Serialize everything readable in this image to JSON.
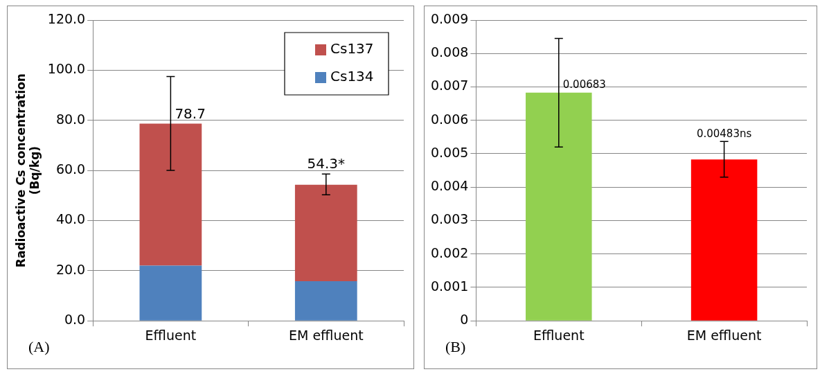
{
  "chart_data": [
    {
      "type": "bar",
      "stacked": true,
      "ylabel": "Radioactive Cs concentration (Bq/kg)",
      "categories": [
        "Effluent",
        "EM effluent"
      ],
      "ylim": [
        0,
        120
      ],
      "yticks": [
        {
          "value": 0,
          "label": "0.0"
        },
        {
          "value": 20,
          "label": "20.0"
        },
        {
          "value": 40,
          "label": "40.0"
        },
        {
          "value": 60,
          "label": "60.0"
        },
        {
          "value": 80,
          "label": "80.0"
        },
        {
          "value": 100,
          "label": "100.0"
        },
        {
          "value": 120,
          "label": "120.0"
        }
      ],
      "grid": "y",
      "legend": "top right",
      "series": [
        {
          "name": "Cs134",
          "color": "#4f81bd",
          "values": [
            22.0,
            15.8
          ]
        },
        {
          "name": "Cs137",
          "color": "#c0504d",
          "values": [
            56.7,
            38.5
          ],
          "errors": [
            [
              60.0,
              97.5
            ],
            [
              50.3,
              58.6
            ]
          ]
        }
      ],
      "totals": [
        "78.7",
        "54.3*"
      ],
      "annotations": [
        "(A)"
      ]
    },
    {
      "type": "bar",
      "categories": [
        "Effluent",
        "EM effluent"
      ],
      "ylim": [
        0,
        0.009
      ],
      "yticks": [
        0,
        0.001,
        0.002,
        0.003,
        0.004,
        0.005,
        0.006,
        0.007,
        0.008,
        0.009
      ],
      "grid": "y",
      "values": [
        0.00683,
        0.00483
      ],
      "colors": [
        "#92d050",
        "#ff0000"
      ],
      "errors": [
        [
          0.0052,
          0.00845
        ],
        [
          0.0043,
          0.00537
        ]
      ],
      "value_labels": [
        "0.00683",
        "0.00483ns"
      ],
      "annotations": [
        "(B)"
      ]
    }
  ]
}
